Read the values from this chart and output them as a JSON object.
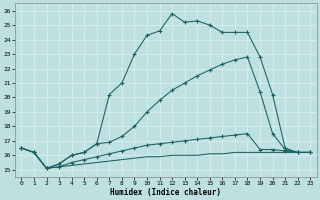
{
  "xlabel": "Humidex (Indice chaleur)",
  "xlim": [
    -0.5,
    23.5
  ],
  "ylim": [
    14.5,
    26.5
  ],
  "yticks": [
    15,
    16,
    17,
    18,
    19,
    20,
    21,
    22,
    23,
    24,
    25,
    26
  ],
  "xticks": [
    0,
    1,
    2,
    3,
    4,
    5,
    6,
    7,
    8,
    9,
    10,
    11,
    12,
    13,
    14,
    15,
    16,
    17,
    18,
    19,
    20,
    21,
    22,
    23
  ],
  "bg_color": "#bfe0e0",
  "grid_color": "#d8f0f0",
  "line_color": "#1a6060",
  "curve1_y": [
    16.5,
    16.2,
    15.1,
    15.4,
    16.0,
    16.2,
    16.8,
    20.2,
    21.0,
    23.0,
    24.3,
    24.6,
    25.8,
    25.2,
    25.3,
    25.0,
    24.5,
    24.5,
    24.5,
    22.8,
    20.2,
    16.5,
    16.2,
    16.2
  ],
  "curve2_y": [
    16.5,
    16.2,
    15.1,
    15.4,
    16.0,
    16.2,
    16.8,
    16.9,
    17.3,
    18.0,
    19.0,
    19.8,
    20.5,
    21.0,
    21.5,
    21.9,
    22.3,
    22.6,
    22.8,
    20.4,
    17.5,
    16.4,
    16.2,
    16.2
  ],
  "curve3_y": [
    16.5,
    16.2,
    15.1,
    15.2,
    15.5,
    15.7,
    15.9,
    16.1,
    16.3,
    16.5,
    16.7,
    16.8,
    16.9,
    17.0,
    17.1,
    17.2,
    17.3,
    17.4,
    17.5,
    16.4,
    16.4,
    16.3,
    16.2,
    16.2
  ],
  "curve4_y": [
    16.5,
    16.2,
    15.1,
    15.2,
    15.3,
    15.4,
    15.5,
    15.6,
    15.7,
    15.8,
    15.9,
    15.9,
    16.0,
    16.0,
    16.0,
    16.1,
    16.1,
    16.2,
    16.2,
    16.2,
    16.2,
    16.2,
    16.2,
    16.2
  ]
}
